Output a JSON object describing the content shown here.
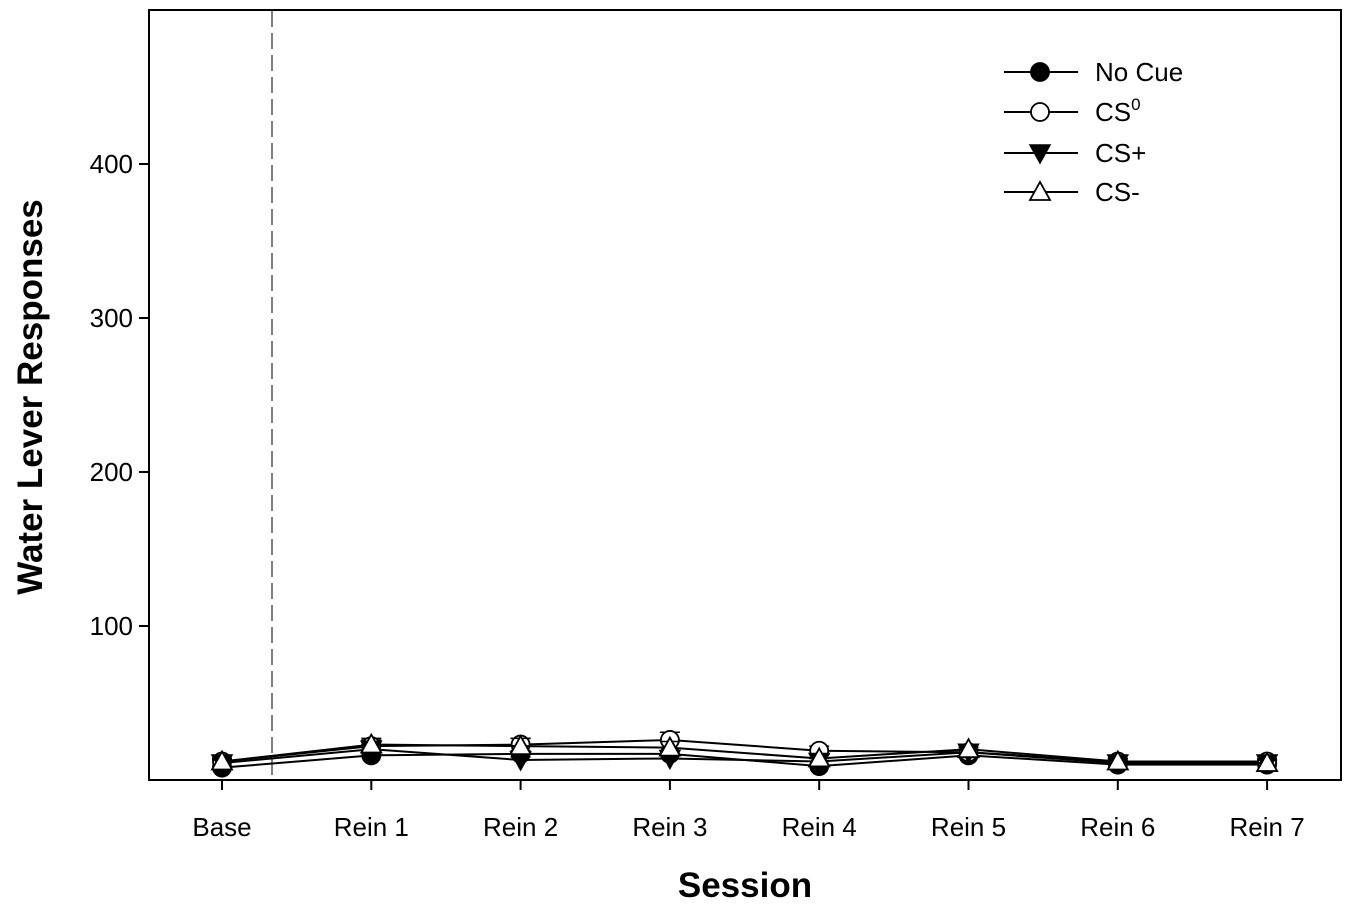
{
  "chart_data": {
    "type": "line",
    "title": "",
    "xlabel": "Session",
    "ylabel": "Water Lever Responses",
    "categories": [
      "Base",
      "Rein 1",
      "Rein 2",
      "Rein 3",
      "Rein 4",
      "Rein 5",
      "Rein 6",
      "Rein 7"
    ],
    "yticks": [
      100,
      200,
      300,
      400
    ],
    "ylim": [
      0,
      500
    ],
    "grid": false,
    "legend_position": "top-right",
    "divider_after_category": "Base",
    "series": [
      {
        "name": "No Cue",
        "marker": "filled-circle",
        "values": [
          8,
          16,
          17,
          17,
          9,
          16,
          10,
          10
        ],
        "errors": [
          1,
          2,
          2,
          2,
          1,
          2,
          1,
          1
        ]
      },
      {
        "name": "CS",
        "name_superscript": "0",
        "marker": "open-circle",
        "values": [
          12,
          22,
          23,
          26,
          19,
          18,
          12,
          12
        ],
        "errors": [
          2,
          4,
          4,
          5,
          3,
          3,
          2,
          2
        ]
      },
      {
        "name": "CS+",
        "marker": "filled-triangle-down",
        "values": [
          11,
          20,
          13,
          14,
          12,
          18,
          11,
          11
        ],
        "errors": [
          2,
          3,
          2,
          2,
          2,
          3,
          2,
          2
        ]
      },
      {
        "name": "CS-",
        "marker": "open-triangle-up",
        "values": [
          12,
          23,
          22,
          21,
          14,
          20,
          12,
          11
        ],
        "errors": [
          2,
          4,
          5,
          4,
          3,
          3,
          2,
          2
        ]
      }
    ]
  }
}
